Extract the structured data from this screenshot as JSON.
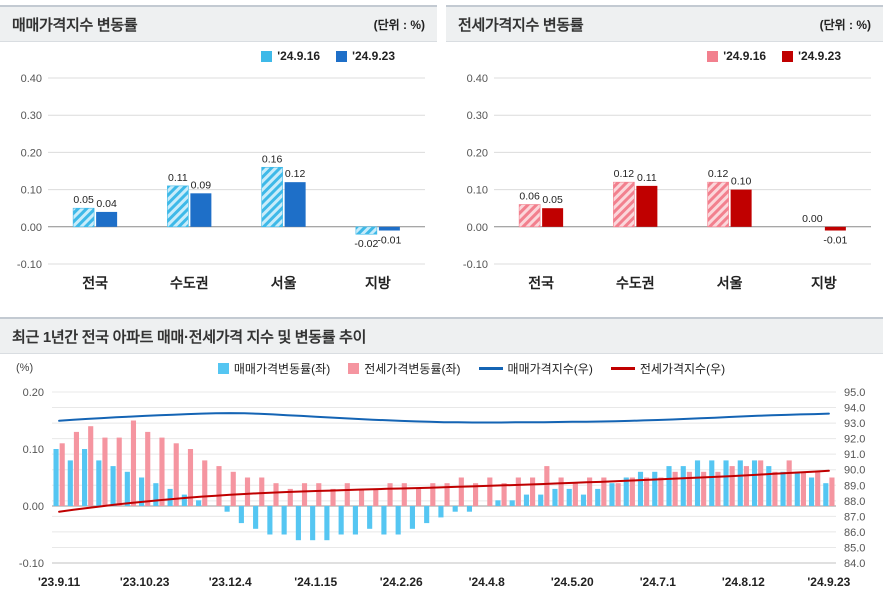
{
  "sale_panel": {
    "title": "매매가격지수 변동률",
    "unit": "(단위 : %)",
    "chart_data": {
      "type": "bar",
      "categories": [
        "전국",
        "수도권",
        "서울",
        "지방"
      ],
      "series": [
        {
          "name": "'24.9.16",
          "values": [
            0.05,
            0.11,
            0.16,
            -0.02
          ],
          "color": "#3eb9e8",
          "hatch": true,
          "hatch_bg": "#c9ecfa"
        },
        {
          "name": "'24.9.23",
          "values": [
            0.04,
            0.09,
            0.12,
            -0.01
          ],
          "color": "#1e6fc8",
          "hatch": false
        }
      ],
      "ylim": [
        -0.1,
        0.4
      ],
      "yticks": [
        0.4,
        0.3,
        0.2,
        0.1,
        0,
        -0.1
      ],
      "grid": true,
      "legend_position": "top-right"
    }
  },
  "jeonse_panel": {
    "title": "전세가격지수 변동률",
    "unit": "(단위 : %)",
    "chart_data": {
      "type": "bar",
      "categories": [
        "전국",
        "수도권",
        "서울",
        "지방"
      ],
      "series": [
        {
          "name": "'24.9.16",
          "values": [
            0.06,
            0.12,
            0.12,
            0
          ],
          "color": "#f2808e",
          "hatch": true,
          "hatch_bg": "#fbd7db"
        },
        {
          "name": "'24.9.23",
          "values": [
            0.05,
            0.11,
            0.1,
            -0.01
          ],
          "color": "#c00000",
          "hatch": false
        }
      ],
      "ylim": [
        -0.1,
        0.4
      ],
      "yticks": [
        0.4,
        0.3,
        0.2,
        0.1,
        0,
        -0.1
      ],
      "grid": true,
      "legend_position": "top-right"
    }
  },
  "trend_panel": {
    "title": "최근 1년간 전국 아파트 매매·전세가격 지수 및 변동률 추이",
    "pct_label": "(%)",
    "legend": [
      {
        "label": "매매가격변동률(좌)",
        "type": "bar",
        "color": "#55c6f2"
      },
      {
        "label": "전세가격변동률(좌)",
        "type": "bar",
        "color": "#f595a0"
      },
      {
        "label": "매매가격지수(우)",
        "type": "line",
        "color": "#1464b4"
      },
      {
        "label": "전세가격지수(우)",
        "type": "line",
        "color": "#c00000"
      }
    ],
    "chart_data": {
      "type": "combo",
      "x_labels": [
        "'23.9.11",
        "'23.10.23",
        "'23.12.4",
        "'24.1.15",
        "'24.2.26",
        "'24.4.8",
        "'24.5.20",
        "'24.7.1",
        "'24.8.12",
        "'24.9.23"
      ],
      "label_positions": [
        0,
        6,
        12,
        18,
        24,
        30,
        36,
        42,
        48,
        54
      ],
      "left_ylim": [
        -0.1,
        0.2
      ],
      "left_yticks": [
        0.2,
        0.1,
        0,
        -0.1
      ],
      "right_ylim": [
        84,
        95
      ],
      "right_yticks": [
        95,
        94,
        93,
        92,
        91,
        90,
        89,
        88,
        87,
        86,
        85,
        84
      ],
      "bar_series": [
        {
          "name": "매매가격변동률(좌)",
          "axis": "left",
          "color": "#55c6f2",
          "values": [
            0.1,
            0.08,
            0.1,
            0.08,
            0.07,
            0.06,
            0.05,
            0.04,
            0.03,
            0.02,
            0.01,
            0.0,
            -0.01,
            -0.03,
            -0.04,
            -0.05,
            -0.05,
            -0.06,
            -0.06,
            -0.06,
            -0.05,
            -0.05,
            -0.04,
            -0.05,
            -0.05,
            -0.04,
            -0.03,
            -0.02,
            -0.01,
            -0.01,
            0.0,
            0.01,
            0.01,
            0.02,
            0.02,
            0.03,
            0.03,
            0.02,
            0.03,
            0.04,
            0.05,
            0.06,
            0.06,
            0.07,
            0.07,
            0.08,
            0.08,
            0.08,
            0.08,
            0.08,
            0.07,
            0.06,
            0.06,
            0.05,
            0.04
          ]
        },
        {
          "name": "전세가격변동률(좌)",
          "axis": "left",
          "color": "#f595a0",
          "values": [
            0.11,
            0.13,
            0.14,
            0.12,
            0.12,
            0.15,
            0.13,
            0.12,
            0.11,
            0.1,
            0.08,
            0.07,
            0.06,
            0.05,
            0.05,
            0.04,
            0.03,
            0.04,
            0.04,
            0.03,
            0.04,
            0.03,
            0.03,
            0.04,
            0.04,
            0.03,
            0.04,
            0.04,
            0.05,
            0.04,
            0.05,
            0.04,
            0.05,
            0.05,
            0.07,
            0.05,
            0.04,
            0.05,
            0.05,
            0.04,
            0.05,
            0.05,
            0.05,
            0.06,
            0.06,
            0.06,
            0.06,
            0.07,
            0.07,
            0.08,
            0.06,
            0.08,
            0.06,
            0.06,
            0.05
          ]
        }
      ],
      "line_series": [
        {
          "name": "매매가격지수(우)",
          "axis": "right",
          "color": "#1464b4",
          "values": [
            93.15,
            93.21,
            93.27,
            93.32,
            93.37,
            93.42,
            93.46,
            93.5,
            93.54,
            93.58,
            93.61,
            93.63,
            93.64,
            93.63,
            93.6,
            93.56,
            93.51,
            93.46,
            93.41,
            93.36,
            93.31,
            93.26,
            93.22,
            93.18,
            93.14,
            93.11,
            93.08,
            93.06,
            93.05,
            93.04,
            93.04,
            93.04,
            93.05,
            93.05,
            93.06,
            93.07,
            93.08,
            93.09,
            93.1,
            93.12,
            93.14,
            93.17,
            93.2,
            93.23,
            93.27,
            93.31,
            93.35,
            93.39,
            93.43,
            93.47,
            93.5,
            93.53,
            93.56,
            93.58,
            93.61
          ]
        },
        {
          "name": "전세가격지수(우)",
          "axis": "right",
          "color": "#c00000",
          "values": [
            87.3,
            87.42,
            87.54,
            87.65,
            87.76,
            87.86,
            87.95,
            88.04,
            88.12,
            88.2,
            88.27,
            88.33,
            88.39,
            88.44,
            88.49,
            88.53,
            88.57,
            88.6,
            88.63,
            88.66,
            88.69,
            88.72,
            88.74,
            88.77,
            88.79,
            88.82,
            88.84,
            88.87,
            88.9,
            88.93,
            88.96,
            88.99,
            89.02,
            89.05,
            89.08,
            89.12,
            89.15,
            89.19,
            89.22,
            89.26,
            89.3,
            89.34,
            89.38,
            89.42,
            89.46,
            89.5,
            89.54,
            89.58,
            89.63,
            89.68,
            89.73,
            89.78,
            89.83,
            89.88,
            89.93
          ]
        }
      ]
    }
  }
}
